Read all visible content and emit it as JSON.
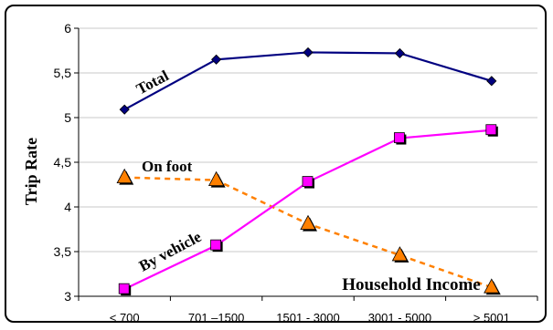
{
  "chart_data": {
    "type": "line",
    "categories": [
      "< 700",
      "701 –1500",
      "1501 - 3000",
      "3001 - 5000",
      "> 5001"
    ],
    "ylabel": "Trip Rate",
    "xlabel": "Household Income",
    "ylim": [
      3,
      6
    ],
    "yticks": [
      3,
      3.5,
      4,
      4.5,
      5,
      5.5,
      6
    ],
    "ytick_labels": [
      "3",
      "3,5",
      "4",
      "4,5",
      "5",
      "5,5",
      "6"
    ],
    "grid": "horizontal",
    "series": [
      {
        "name": "Total",
        "values": [
          5.09,
          5.65,
          5.73,
          5.72,
          5.41
        ],
        "color": "#000080",
        "marker": "diamond",
        "style": "solid"
      },
      {
        "name": "On foot",
        "values": [
          4.33,
          4.3,
          3.81,
          3.46,
          3.1
        ],
        "color": "#FF8000",
        "marker": "triangle",
        "style": "dashed"
      },
      {
        "name": "By vehicle",
        "values": [
          3.08,
          3.57,
          4.28,
          4.77,
          4.86
        ],
        "color": "#FF00FF",
        "marker": "square",
        "style": "solid"
      }
    ]
  }
}
